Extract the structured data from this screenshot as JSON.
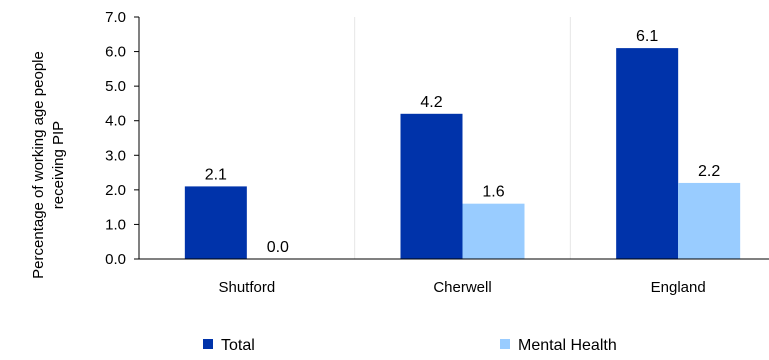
{
  "chart_data": {
    "type": "bar",
    "categories": [
      "Shutford",
      "Cherwell",
      "England"
    ],
    "series": [
      {
        "name": "Total",
        "values": [
          2.1,
          4.2,
          6.1
        ],
        "color": "#0033aa"
      },
      {
        "name": "Mental Health",
        "values": [
          0.0,
          1.6,
          2.2
        ],
        "color": "#99ccff"
      }
    ],
    "ylabel_lines": [
      "Percentage of working age people",
      "receiving PIP"
    ],
    "ylim": [
      0,
      7
    ],
    "yticks": [
      "0.0",
      "1.0",
      "2.0",
      "3.0",
      "4.0",
      "5.0",
      "6.0",
      "7.0"
    ],
    "grid": "vertical-category-separators",
    "legend_position": "bottom",
    "data_label_format": "one-decimal"
  }
}
